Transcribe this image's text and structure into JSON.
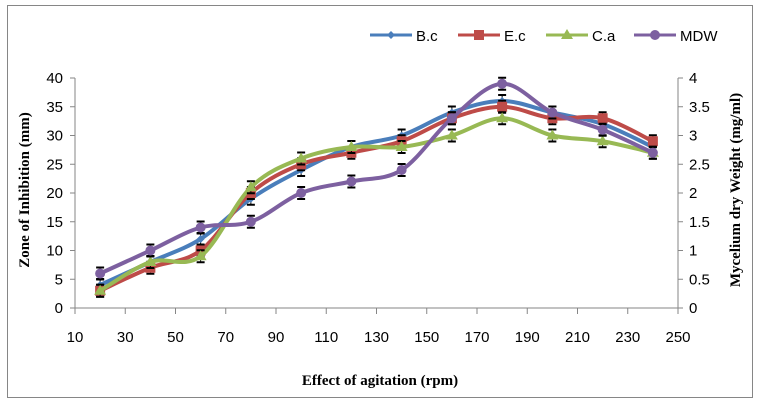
{
  "chart_data": {
    "type": "line",
    "title": "",
    "xlabel": "Effect of agitation (rpm)",
    "ylabel": "Zone of Inhibition (mm)",
    "y2label": "Mycelium dry Weight (mg/ml)",
    "x_ticks": [
      10,
      30,
      50,
      70,
      90,
      110,
      130,
      150,
      170,
      190,
      210,
      230,
      250
    ],
    "xlim": [
      10,
      250
    ],
    "ylim": [
      0,
      40
    ],
    "y_ticks": [
      0,
      5,
      10,
      15,
      20,
      25,
      30,
      35,
      40
    ],
    "y2lim": [
      0,
      4
    ],
    "y2_ticks": [
      "0",
      "0.5",
      "1",
      "1.5",
      "2",
      "2.5",
      "3",
      "3.5",
      "4"
    ],
    "grid": false,
    "legend_position": "top-right",
    "x": [
      20,
      40,
      60,
      80,
      100,
      120,
      140,
      160,
      180,
      200,
      220,
      240
    ],
    "series": [
      {
        "name": "B.c",
        "axis": "left",
        "color": "#4a7ebb",
        "marker": "diamond",
        "values": [
          4,
          8,
          12,
          19,
          24,
          28,
          30,
          34,
          36,
          34,
          32,
          28
        ]
      },
      {
        "name": "E.c",
        "axis": "left",
        "color": "#be4b48",
        "marker": "square",
        "values": [
          3,
          7,
          10,
          20,
          25,
          27,
          29,
          33,
          35,
          33,
          33,
          29
        ]
      },
      {
        "name": "C.a",
        "axis": "left",
        "color": "#98b954",
        "marker": "triangle",
        "values": [
          3,
          8,
          9,
          21,
          26,
          28,
          28,
          30,
          33,
          30,
          29,
          27
        ]
      },
      {
        "name": "MDW",
        "axis": "right",
        "color": "#7d60a0",
        "marker": "circle",
        "values": [
          0.6,
          1.0,
          1.4,
          1.5,
          2.0,
          2.2,
          2.4,
          3.3,
          3.9,
          3.4,
          3.1,
          2.7
        ]
      }
    ],
    "error_bars": true
  }
}
